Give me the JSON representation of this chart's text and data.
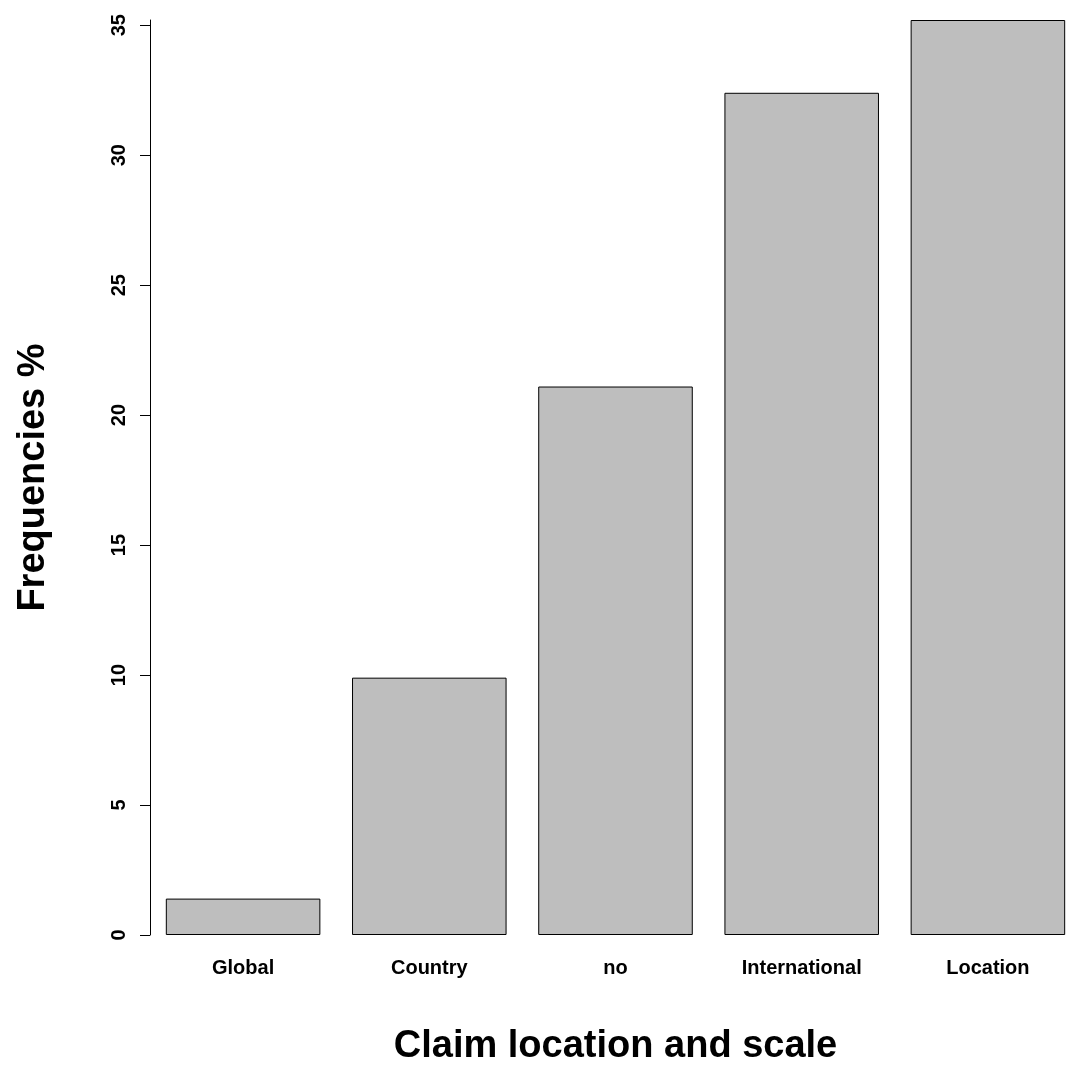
{
  "chart_data": {
    "type": "bar",
    "xlabel": "Claim location and scale",
    "ylabel": "Frequencies %",
    "categories": [
      "Global",
      "Country",
      "no",
      "International",
      "Location"
    ],
    "values": [
      1.4,
      9.9,
      21.1,
      32.4,
      35.2
    ],
    "color": "#bebebe",
    "ylim": [
      0,
      35.2
    ],
    "yticks": [
      0,
      5,
      10,
      15,
      20,
      25,
      30,
      35
    ],
    "grid": false
  }
}
